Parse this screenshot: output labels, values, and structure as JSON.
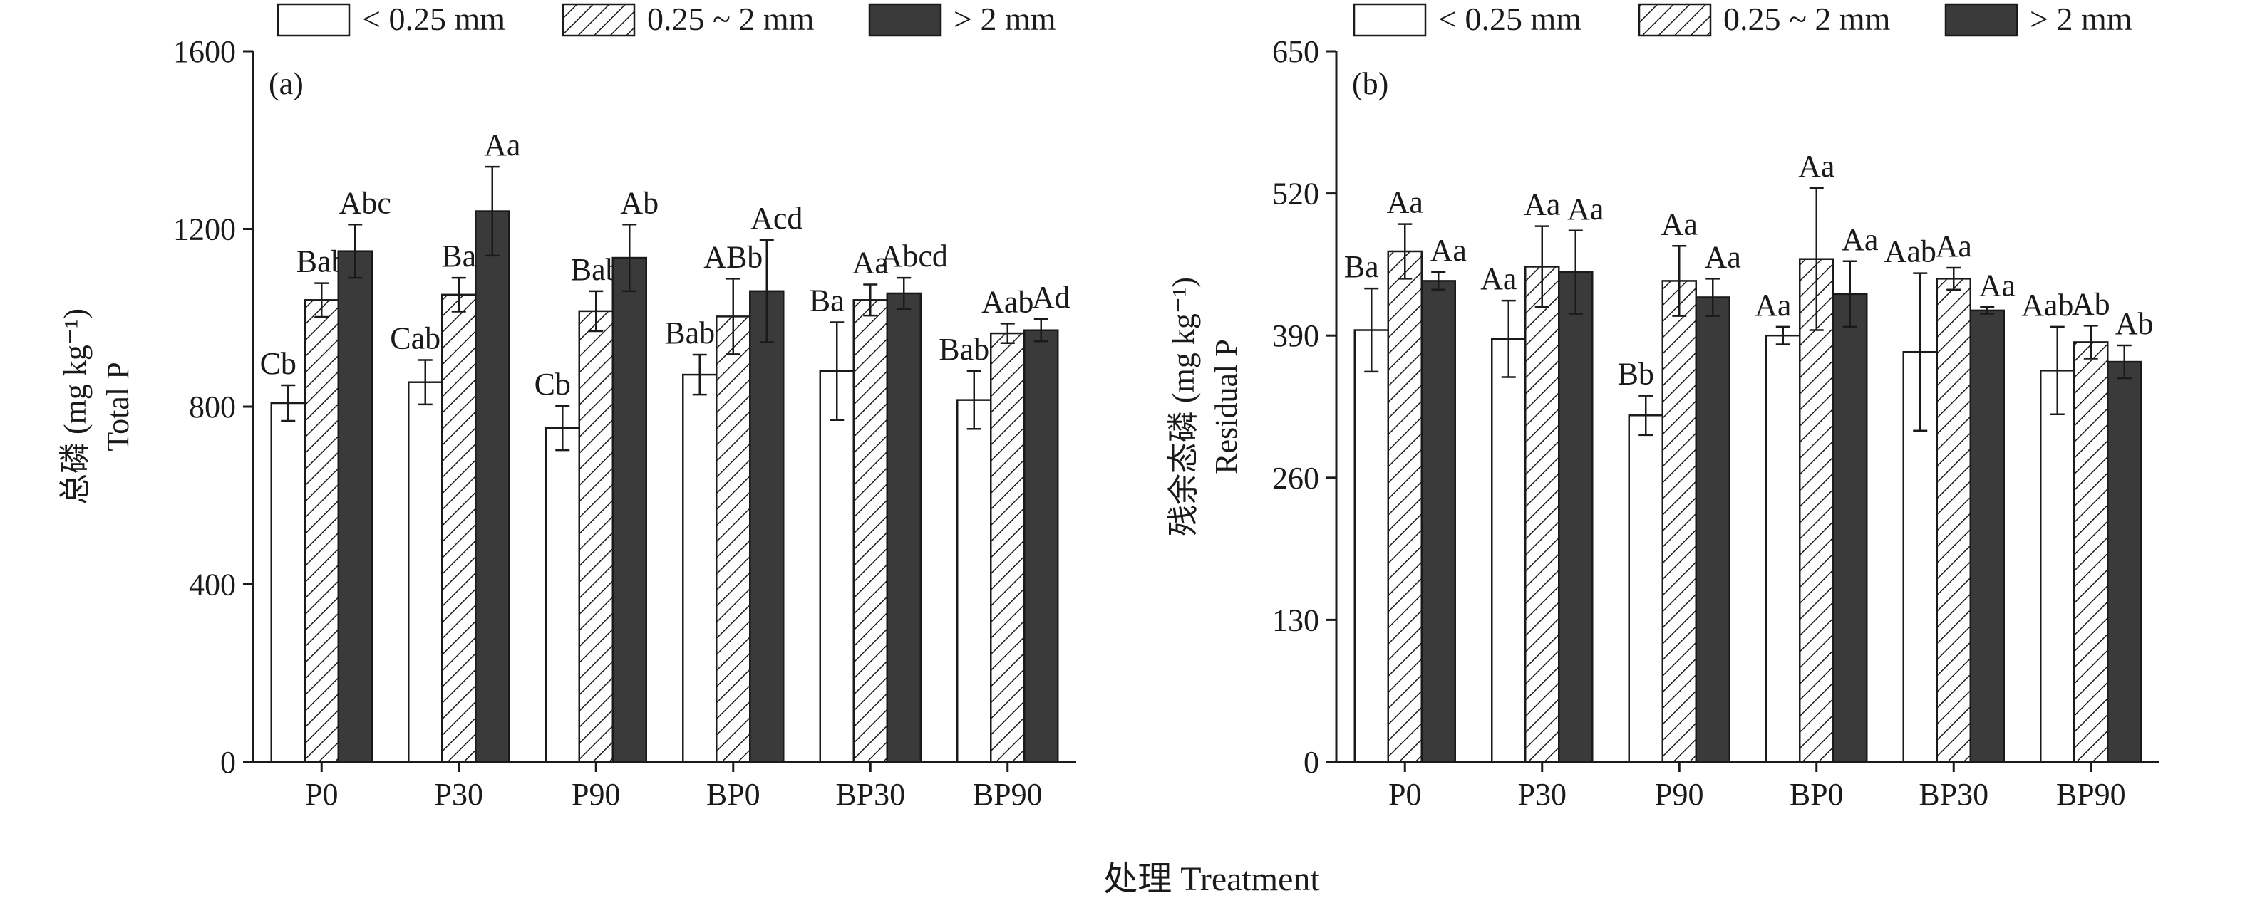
{
  "series_colors": {
    "fine": "#ffffff",
    "medium_hatch": "#1a1a1a",
    "coarse": "#3a3a3a",
    "stroke": "#1a1a1a"
  },
  "common_xlabel": "处理 Treatment",
  "chart_data": [
    {
      "type": "bar",
      "panel_label": "(a)",
      "ylabel_cn": "总磷 (mg kg⁻¹)",
      "ylabel_en": "Total P",
      "xlabel": "",
      "ylim": [
        0,
        1600
      ],
      "yticks": [
        0,
        400,
        800,
        1200,
        1600
      ],
      "categories": [
        "P0",
        "P30",
        "P90",
        "BP0",
        "BP30",
        "BP90"
      ],
      "legend_position": "top",
      "grid": false,
      "series": [
        {
          "name": "< 0.25 mm",
          "pattern": "white",
          "values": [
            808,
            855,
            752,
            872,
            880,
            815
          ],
          "errors": [
            40,
            50,
            50,
            45,
            110,
            65
          ],
          "labels": [
            "Cb",
            "Cab",
            "Cb",
            "Bab",
            "Ba",
            "Bab"
          ]
        },
        {
          "name": "0.25 ~ 2 mm",
          "pattern": "hatch",
          "values": [
            1040,
            1052,
            1015,
            1003,
            1040,
            965
          ],
          "errors": [
            38,
            38,
            45,
            85,
            35,
            22
          ],
          "labels": [
            "Bab",
            "Ba",
            "Bab",
            "ABb",
            "Aa",
            "Aab"
          ]
        },
        {
          "name": "> 2 mm",
          "pattern": "dark",
          "values": [
            1150,
            1240,
            1135,
            1060,
            1055,
            972
          ],
          "errors": [
            60,
            100,
            75,
            115,
            35,
            25
          ],
          "labels": [
            "Abc",
            "Aa",
            "Ab",
            "Acd",
            "Abcd",
            "Ad"
          ]
        }
      ]
    },
    {
      "type": "bar",
      "panel_label": "(b)",
      "ylabel_cn": "残余态磷 (mg kg⁻¹)",
      "ylabel_en": "Residual P",
      "xlabel": "",
      "ylim": [
        0,
        650
      ],
      "yticks": [
        0,
        130,
        260,
        390,
        520,
        650
      ],
      "categories": [
        "P0",
        "P30",
        "P90",
        "BP0",
        "BP30",
        "BP90"
      ],
      "legend_position": "top",
      "grid": false,
      "series": [
        {
          "name": "< 0.25 mm",
          "pattern": "white",
          "values": [
            395,
            387,
            317,
            390,
            375,
            358
          ],
          "errors": [
            38,
            35,
            18,
            8,
            72,
            40
          ],
          "labels": [
            "Ba",
            "Aa",
            "Bb",
            "Aa",
            "Aab",
            "Aab"
          ]
        },
        {
          "name": "0.25 ~ 2 mm",
          "pattern": "hatch",
          "values": [
            467,
            453,
            440,
            460,
            442,
            384
          ],
          "errors": [
            25,
            37,
            32,
            65,
            10,
            15
          ],
          "labels": [
            "Aa",
            "Aa",
            "Aa",
            "Aa",
            "Aa",
            "Ab"
          ]
        },
        {
          "name": "> 2 mm",
          "pattern": "dark",
          "values": [
            440,
            448,
            425,
            428,
            413,
            366
          ],
          "errors": [
            8,
            38,
            17,
            30,
            3,
            15
          ],
          "labels": [
            "Aa",
            "Aa",
            "Aa",
            "Aa",
            "Aa",
            "Ab"
          ]
        }
      ]
    }
  ]
}
